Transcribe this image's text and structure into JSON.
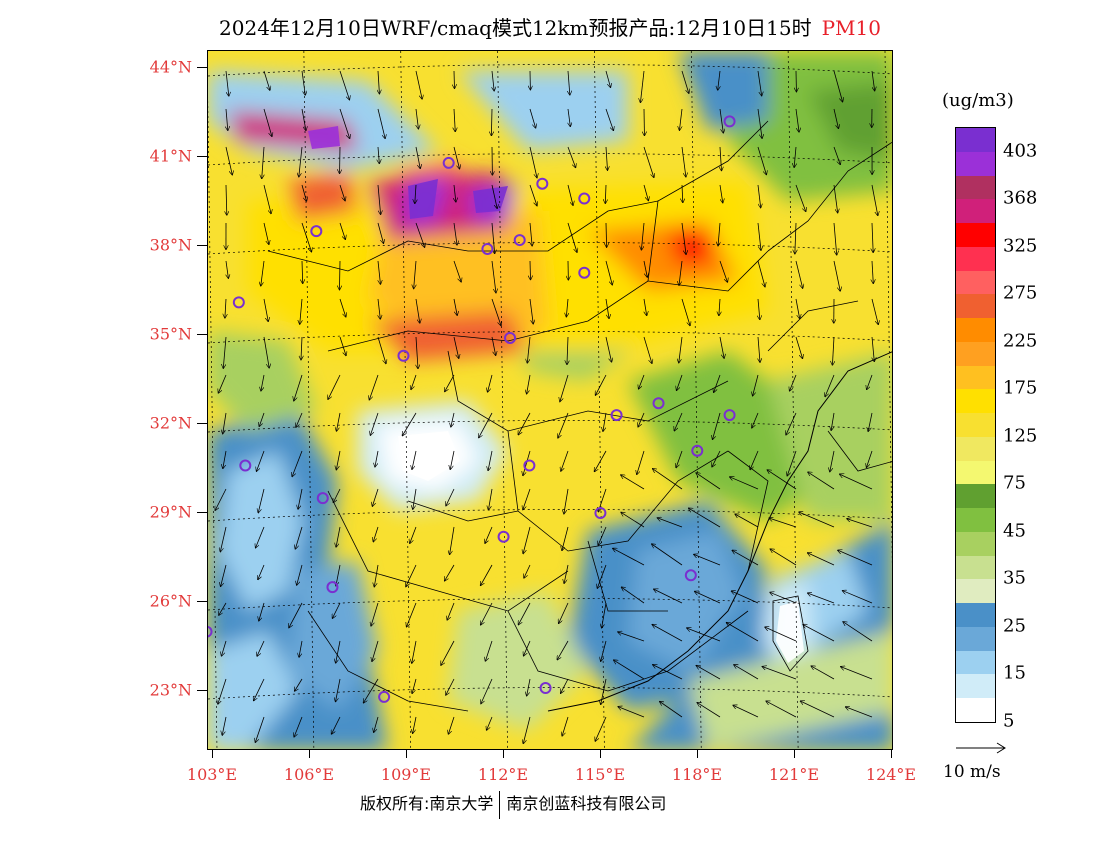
{
  "title": {
    "main": "2024年12月10日WRF/cmaq模式12km预报产品:12月10日15时",
    "variable": "PM10"
  },
  "latitudes": [
    "44°N",
    "41°N",
    "38°N",
    "35°N",
    "32°N",
    "29°N",
    "26°N",
    "23°N"
  ],
  "longitudes": [
    "103°E",
    "106°E",
    "109°E",
    "112°E",
    "115°E",
    "118°E",
    "121°E",
    "124°E"
  ],
  "legend": {
    "unit": "(ug/m3)",
    "labels": [
      "403",
      "368",
      "325",
      "275",
      "225",
      "175",
      "125",
      "75",
      "45",
      "35",
      "25",
      "15",
      "5"
    ],
    "colors": [
      "#7a2fd0",
      "#9b30d8",
      "#b03060",
      "#d0207a",
      "#ff0000",
      "#ff3050",
      "#ff6060",
      "#f06030",
      "#ff8c00",
      "#ffa020",
      "#ffc020",
      "#ffe000",
      "#f8e030",
      "#f0e860",
      "#f4f870",
      "#60a030",
      "#80c040",
      "#a8d060",
      "#c8e090",
      "#e0ecc0",
      "#4a90c8",
      "#6aa8d8",
      "#9cd0f0",
      "#d0ecf8",
      "#ffffff"
    ]
  },
  "wind_reference": {
    "label": "10 m/s"
  },
  "copyright": {
    "holder": "版权所有:南京大学",
    "company": "南京创蓝科技有限公司"
  },
  "stations": [
    {
      "lon": 119.0,
      "lat": 42.2
    },
    {
      "lon": 110.3,
      "lat": 40.8
    },
    {
      "lon": 113.2,
      "lat": 40.1
    },
    {
      "lon": 114.5,
      "lat": 39.6
    },
    {
      "lon": 106.2,
      "lat": 38.5
    },
    {
      "lon": 111.5,
      "lat": 37.9
    },
    {
      "lon": 112.5,
      "lat": 38.2
    },
    {
      "lon": 114.5,
      "lat": 37.1
    },
    {
      "lon": 103.8,
      "lat": 36.1
    },
    {
      "lon": 112.2,
      "lat": 34.9
    },
    {
      "lon": 108.9,
      "lat": 34.3
    },
    {
      "lon": 115.5,
      "lat": 32.3
    },
    {
      "lon": 116.8,
      "lat": 32.7
    },
    {
      "lon": 119.0,
      "lat": 32.3
    },
    {
      "lon": 118.0,
      "lat": 31.1
    },
    {
      "lon": 104.0,
      "lat": 30.6
    },
    {
      "lon": 112.8,
      "lat": 30.6
    },
    {
      "lon": 106.4,
      "lat": 29.5
    },
    {
      "lon": 115.0,
      "lat": 29.0
    },
    {
      "lon": 112.0,
      "lat": 28.2
    },
    {
      "lon": 117.8,
      "lat": 26.9
    },
    {
      "lon": 106.7,
      "lat": 26.5
    },
    {
      "lon": 102.8,
      "lat": 25.0
    },
    {
      "lon": 108.3,
      "lat": 22.8
    },
    {
      "lon": 113.3,
      "lat": 23.1
    }
  ]
}
